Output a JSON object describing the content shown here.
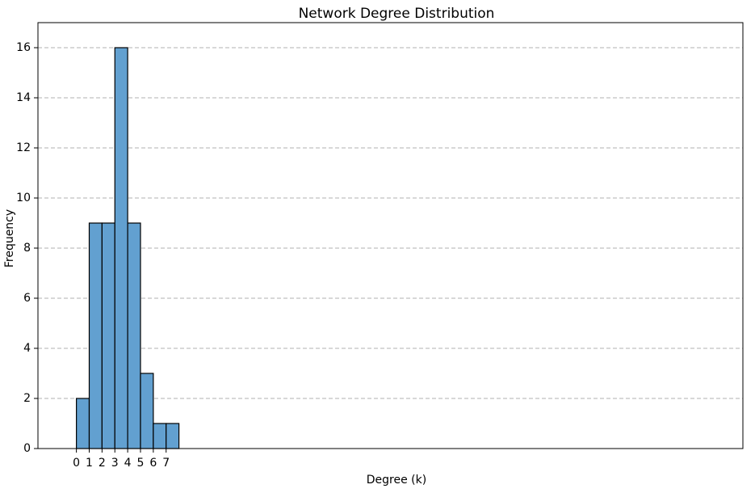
{
  "chart_data": {
    "type": "histogram",
    "title": "Network Degree Distribution",
    "x_label": "Degree (k)",
    "y_label": "Frequency",
    "bins": [
      0,
      1,
      2,
      3,
      4,
      5,
      6,
      7,
      8
    ],
    "values": [
      2,
      9,
      9,
      16,
      9,
      3,
      1,
      1
    ],
    "color": "#62a0d0",
    "edgecolor": "#000000",
    "xlim": [
      -3,
      52
    ],
    "xticks": [
      0,
      1,
      2,
      3,
      4,
      5,
      6,
      7
    ],
    "ylim": [
      0,
      17
    ],
    "yticks": [
      0,
      2,
      4,
      6,
      8,
      10,
      12,
      14,
      16
    ],
    "grid": true
  }
}
